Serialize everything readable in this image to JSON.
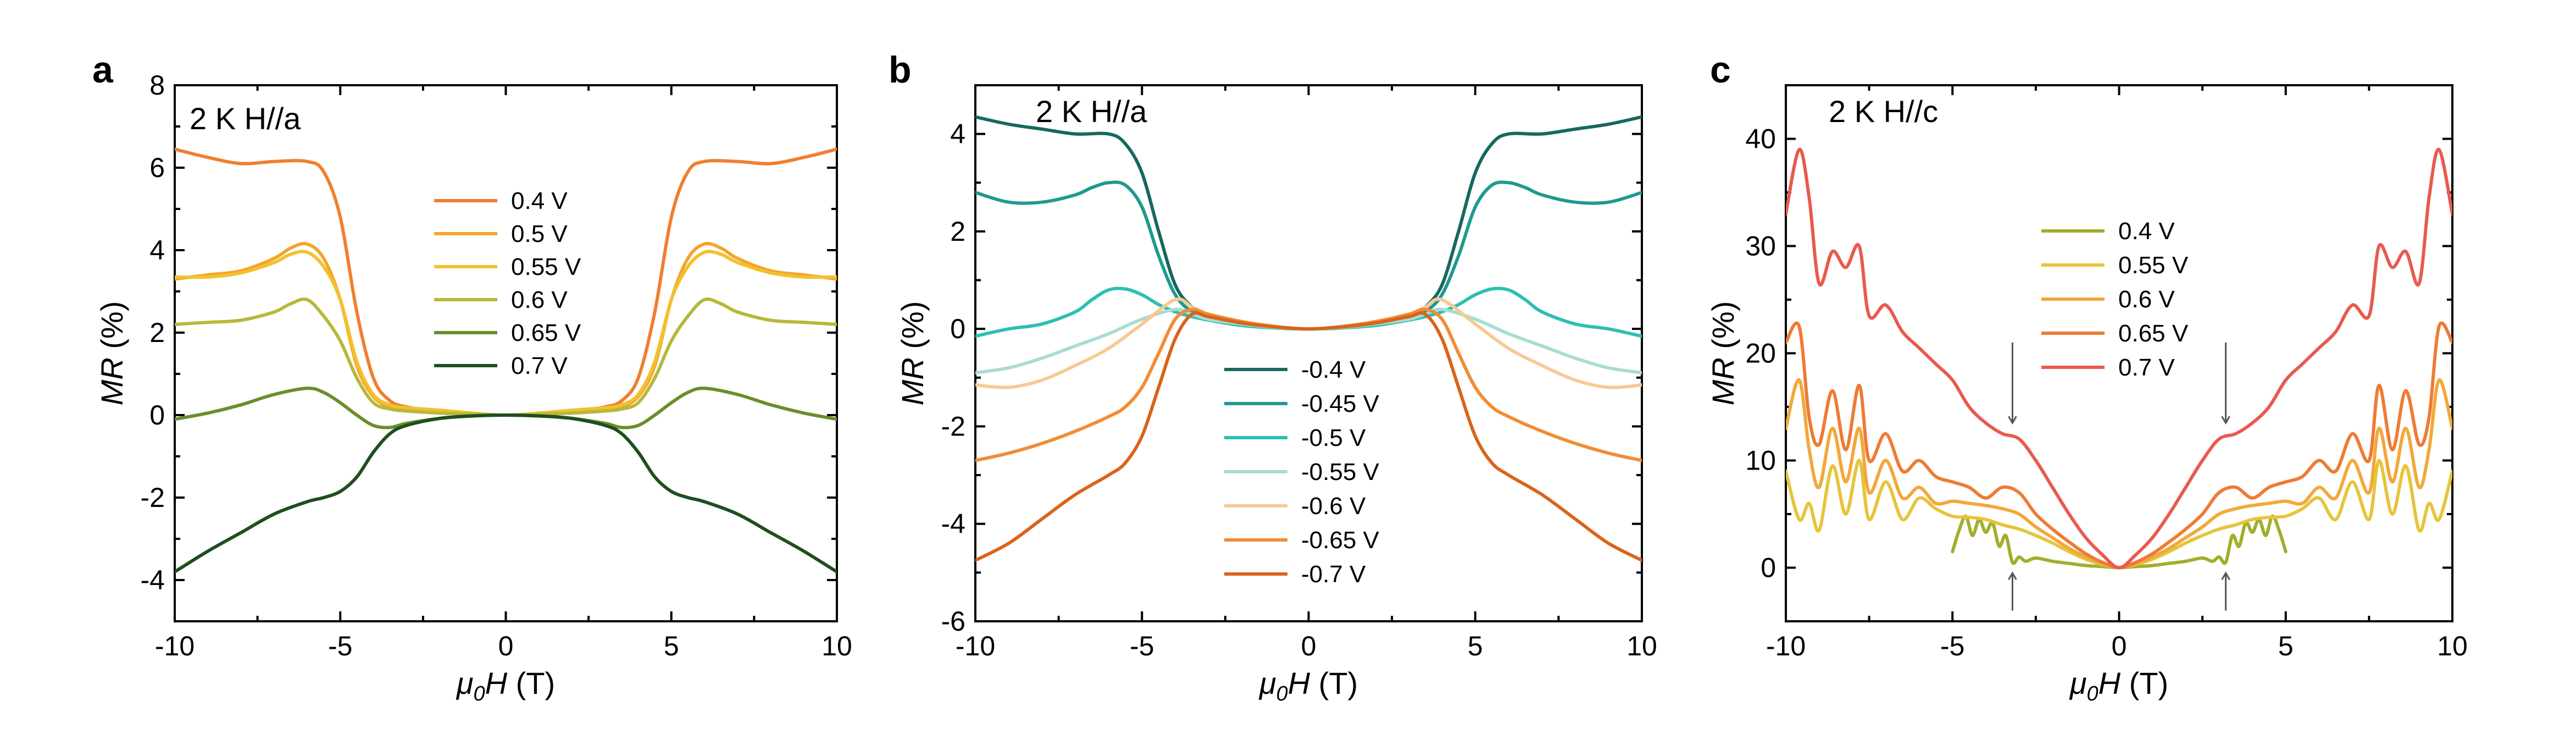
{
  "chart_data": [
    {
      "type": "line",
      "panel": "a",
      "annotation": "2 K  H//a",
      "xlabel_sym": "μ",
      "xlabel_sub": "0",
      "xlabel_var": "H",
      "xlabel_unit": " (T)",
      "ylabel_var": "MR",
      "ylabel_unit": " (%)",
      "xlim": [
        -10,
        10
      ],
      "ylim": [
        -5,
        8
      ],
      "xticks": [
        -10,
        -5,
        0,
        5,
        10
      ],
      "yticks": [
        -4,
        -2,
        0,
        2,
        4,
        6,
        8
      ],
      "legend_position": "center",
      "series": [
        {
          "name": "0.4 V",
          "color": "#F07F2F",
          "x": [
            0,
            1,
            2,
            3,
            3.5,
            4,
            4.5,
            5,
            5.5,
            6,
            7,
            8,
            9,
            10
          ],
          "y": [
            0,
            0.02,
            0.08,
            0.2,
            0.35,
            0.9,
            2.5,
            4.8,
            5.9,
            6.15,
            6.15,
            6.1,
            6.25,
            6.45
          ]
        },
        {
          "name": "0.5 V",
          "color": "#F4A52C",
          "x": [
            0,
            1,
            2,
            3,
            3.5,
            4,
            4.5,
            5,
            5.5,
            6,
            6.5,
            7,
            8,
            9,
            10
          ],
          "y": [
            0,
            0.01,
            0.06,
            0.12,
            0.2,
            0.45,
            1.2,
            2.8,
            3.8,
            4.15,
            4.05,
            3.8,
            3.5,
            3.4,
            3.3
          ]
        },
        {
          "name": "0.55 V",
          "color": "#F2C12E",
          "x": [
            0,
            1,
            2,
            3,
            3.5,
            4,
            4.5,
            5,
            5.5,
            6,
            6.5,
            7,
            8,
            9,
            10
          ],
          "y": [
            0,
            0.05,
            0.12,
            0.18,
            0.25,
            0.5,
            1.3,
            2.8,
            3.6,
            3.95,
            3.9,
            3.7,
            3.45,
            3.35,
            3.35
          ]
        },
        {
          "name": "0.6 V",
          "color": "#B6B83A",
          "x": [
            0,
            1,
            2,
            3,
            3.5,
            4,
            4.5,
            5,
            5.5,
            6,
            6.5,
            7,
            8,
            9,
            10
          ],
          "y": [
            0,
            0.02,
            0.05,
            0.1,
            0.15,
            0.3,
            0.9,
            1.8,
            2.4,
            2.8,
            2.7,
            2.5,
            2.3,
            2.25,
            2.2
          ]
        },
        {
          "name": "0.65 V",
          "color": "#6B8E2A",
          "x": [
            0,
            1,
            2,
            3,
            3.5,
            4,
            4.5,
            5,
            5.5,
            6,
            7,
            8,
            9,
            10
          ],
          "y": [
            0,
            -0.02,
            -0.08,
            -0.2,
            -0.3,
            -0.25,
            0,
            0.3,
            0.55,
            0.65,
            0.5,
            0.25,
            0.05,
            -0.1
          ]
        },
        {
          "name": "0.7 V",
          "color": "#1F4E1F",
          "x": [
            0,
            1,
            2,
            3,
            3.5,
            4,
            4.5,
            5,
            5.5,
            6,
            7,
            8,
            9,
            10
          ],
          "y": [
            0,
            -0.02,
            -0.08,
            -0.25,
            -0.45,
            -0.9,
            -1.5,
            -1.85,
            -2.0,
            -2.1,
            -2.4,
            -2.85,
            -3.3,
            -3.8
          ]
        }
      ]
    },
    {
      "type": "line",
      "panel": "b",
      "annotation": "2 K  H//a",
      "xlabel_sym": "μ",
      "xlabel_sub": "0",
      "xlabel_var": "H",
      "xlabel_unit": " (T)",
      "ylabel_var": "MR",
      "ylabel_unit": " (%)",
      "xlim": [
        -10,
        10
      ],
      "ylim": [
        -6,
        5
      ],
      "xticks": [
        -10,
        -5,
        0,
        5,
        10
      ],
      "yticks": [
        -6,
        -4,
        -2,
        0,
        2,
        4
      ],
      "legend_position": "bottom-center",
      "series": [
        {
          "name": "-0.4 V",
          "color": "#18685F",
          "x": [
            0,
            1,
            2,
            3,
            3.5,
            4,
            4.5,
            5,
            5.5,
            6,
            7,
            8,
            9,
            10
          ],
          "y": [
            0,
            0.02,
            0.1,
            0.25,
            0.45,
            0.9,
            2.0,
            3.2,
            3.8,
            4.0,
            4.0,
            4.1,
            4.2,
            4.35
          ]
        },
        {
          "name": "-0.45 V",
          "color": "#1E9A8E",
          "x": [
            0,
            1,
            2,
            3,
            3.5,
            4,
            4.5,
            5,
            5.5,
            6,
            6.5,
            7,
            8,
            9,
            10
          ],
          "y": [
            0,
            0.02,
            0.08,
            0.2,
            0.35,
            0.7,
            1.5,
            2.5,
            2.95,
            3.0,
            2.9,
            2.75,
            2.6,
            2.6,
            2.8
          ]
        },
        {
          "name": "-0.5 V",
          "color": "#2DBFB0",
          "x": [
            0,
            1,
            2,
            3,
            3.5,
            4,
            4.5,
            5,
            5.5,
            6,
            6.5,
            7,
            8,
            9,
            10
          ],
          "y": [
            0,
            0.02,
            0.07,
            0.18,
            0.25,
            0.35,
            0.5,
            0.7,
            0.82,
            0.8,
            0.6,
            0.35,
            0.1,
            0,
            -0.15
          ]
        },
        {
          "name": "-0.55 V",
          "color": "#A9DCD2",
          "x": [
            0,
            1,
            2,
            3,
            3.5,
            4,
            5,
            6,
            7,
            8,
            9,
            10
          ],
          "y": [
            0,
            0.03,
            0.1,
            0.2,
            0.3,
            0.4,
            0.2,
            -0.1,
            -0.35,
            -0.6,
            -0.8,
            -0.9
          ]
        },
        {
          "name": "-0.6 V",
          "color": "#F8C995",
          "x": [
            0,
            1,
            2,
            3,
            3.5,
            4,
            5,
            6,
            7,
            8,
            9,
            10
          ],
          "y": [
            0,
            0.05,
            0.15,
            0.3,
            0.45,
            0.6,
            0.1,
            -0.4,
            -0.75,
            -1.05,
            -1.2,
            -1.15
          ]
        },
        {
          "name": "-0.65 V",
          "color": "#F28C36",
          "x": [
            0,
            1,
            2,
            3,
            3.5,
            4,
            4.5,
            5,
            5.5,
            6,
            7,
            8,
            9,
            10
          ],
          "y": [
            0,
            0.05,
            0.15,
            0.3,
            0.4,
            0.2,
            -0.5,
            -1.2,
            -1.6,
            -1.8,
            -2.1,
            -2.35,
            -2.55,
            -2.7
          ]
        },
        {
          "name": "-0.7 V",
          "color": "#D9641A",
          "x": [
            0,
            1,
            2,
            3,
            3.5,
            4,
            4.5,
            5,
            5.5,
            6,
            7,
            8,
            9,
            10
          ],
          "y": [
            0,
            0.04,
            0.12,
            0.25,
            0.3,
            -0.2,
            -1.2,
            -2.2,
            -2.75,
            -3.0,
            -3.4,
            -3.9,
            -4.4,
            -4.75
          ]
        }
      ]
    },
    {
      "type": "line",
      "panel": "c",
      "annotation": "2 K H//c",
      "xlabel_sym": "μ",
      "xlabel_sub": "0",
      "xlabel_var": "H",
      "xlabel_unit": " (T)",
      "ylabel_var": "MR",
      "ylabel_unit": " (%)",
      "xlim": [
        -10,
        10
      ],
      "ylim": [
        -5,
        45
      ],
      "xticks": [
        -10,
        -5,
        0,
        5,
        10
      ],
      "yticks": [
        0,
        10,
        20,
        30,
        40
      ],
      "legend_position": "top-center",
      "arrow_fields": [
        -3.2,
        3.2
      ],
      "series": [
        {
          "name": "0.4 V",
          "color": "#A3AD2C",
          "x": [
            0,
            0.5,
            1,
            1.5,
            2,
            2.5,
            2.8,
            3.0,
            3.2,
            3.4,
            3.6,
            3.8,
            4.0,
            4.2,
            4.4,
            4.6,
            4.8,
            5.0
          ],
          "y": [
            0,
            0.1,
            0.2,
            0.4,
            0.6,
            0.9,
            0.6,
            1.0,
            0.5,
            3.0,
            2.0,
            4.2,
            3.3,
            4.5,
            3.0,
            4.8,
            3.5,
            1.5
          ]
        },
        {
          "name": "0.55 V",
          "color": "#E6C43C",
          "x": [
            0,
            0.5,
            1,
            1.5,
            2,
            2.5,
            3,
            3.5,
            4,
            4.5,
            5,
            5.5,
            6,
            6.5,
            7,
            7.5,
            7.8,
            8.2,
            8.6,
            9.0,
            9.3,
            9.6,
            10
          ],
          "y": [
            0,
            0.3,
            0.8,
            1.5,
            2.3,
            3.0,
            3.6,
            4.0,
            4.5,
            4.7,
            4.8,
            5.5,
            6.5,
            4.5,
            8.0,
            4.5,
            10.0,
            5.0,
            9.5,
            3.5,
            6.0,
            4.5,
            9.0
          ]
        },
        {
          "name": "0.6 V",
          "color": "#F2A83A",
          "x": [
            0,
            0.5,
            1,
            1.5,
            2,
            2.5,
            3,
            3.5,
            4,
            4.5,
            5,
            5.5,
            6,
            6.5,
            7,
            7.5,
            7.8,
            8.2,
            8.6,
            9.0,
            9.3,
            9.6,
            10
          ],
          "y": [
            0,
            0.4,
            1.0,
            1.8,
            2.8,
            3.8,
            5.0,
            5.5,
            5.8,
            6.0,
            6.2,
            6.0,
            7.5,
            6.5,
            10.0,
            7.0,
            13.0,
            8.0,
            13.0,
            7.5,
            11.0,
            17.5,
            13.0
          ]
        },
        {
          "name": "0.65 V",
          "color": "#EE7B35",
          "x": [
            0,
            0.5,
            1,
            1.5,
            2,
            2.5,
            3,
            3.5,
            4,
            4.5,
            5,
            5.5,
            6,
            6.5,
            7,
            7.5,
            7.8,
            8.2,
            8.6,
            9.0,
            9.3,
            9.6,
            10
          ],
          "y": [
            0,
            0.5,
            1.3,
            2.4,
            3.6,
            5.0,
            7.0,
            7.5,
            6.5,
            7.5,
            8.0,
            8.5,
            10.0,
            9.0,
            12.5,
            10.0,
            17.0,
            11.0,
            16.5,
            11.5,
            14.0,
            22.5,
            21.0
          ]
        },
        {
          "name": "0.7 V",
          "color": "#E85A4F",
          "x": [
            0,
            0.5,
            1,
            1.5,
            2,
            2.5,
            3,
            3.5,
            4,
            4.5,
            5,
            5.5,
            6,
            6.5,
            7,
            7.5,
            7.8,
            8.2,
            8.6,
            9.0,
            9.3,
            9.6,
            10
          ],
          "y": [
            0,
            1.2,
            2.8,
            5.0,
            7.5,
            10.0,
            12.0,
            12.5,
            13.5,
            15.0,
            17.5,
            19.0,
            20.5,
            22.0,
            24.5,
            23.5,
            30.0,
            28.0,
            29.5,
            26.5,
            34.5,
            39.0,
            33.0
          ]
        }
      ]
    }
  ]
}
